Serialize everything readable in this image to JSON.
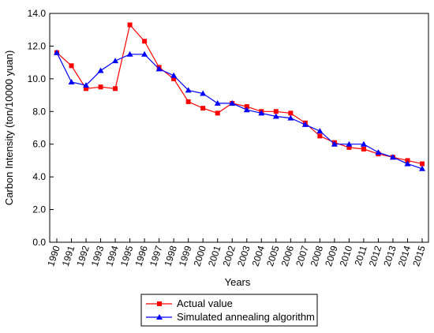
{
  "chart_data": {
    "type": "line",
    "xlabel": "Years",
    "ylabel": "Carbon Intensity (ton/10000 yuan)",
    "x": [
      "1990",
      "1991",
      "1992",
      "1993",
      "1994",
      "1995",
      "1996",
      "1997",
      "1998",
      "1999",
      "2000",
      "2001",
      "2002",
      "2003",
      "2004",
      "2005",
      "2006",
      "2007",
      "2008",
      "2009",
      "2010",
      "2011",
      "2012",
      "2013",
      "2014",
      "2015"
    ],
    "ylim": [
      0,
      14
    ],
    "yticks": [
      "0.0",
      "2.0",
      "4.0",
      "6.0",
      "8.0",
      "10.0",
      "12.0",
      "14.0"
    ],
    "grid": false,
    "legend_position": "bottom",
    "series": [
      {
        "name": "Actual value",
        "color": "#ff0000",
        "marker": "square",
        "values": [
          11.6,
          10.8,
          9.4,
          9.5,
          9.4,
          13.3,
          12.3,
          10.7,
          10.0,
          8.6,
          8.2,
          7.9,
          8.5,
          8.3,
          8.0,
          8.0,
          7.9,
          7.3,
          6.5,
          6.1,
          5.8,
          5.7,
          5.4,
          5.2,
          5.0,
          4.8
        ]
      },
      {
        "name": "Simulated annealing algorithm",
        "color": "#0000ff",
        "marker": "triangle",
        "values": [
          11.6,
          9.8,
          9.6,
          10.5,
          11.1,
          11.5,
          11.5,
          10.6,
          10.2,
          9.3,
          9.1,
          8.5,
          8.5,
          8.1,
          7.9,
          7.7,
          7.6,
          7.2,
          6.8,
          6.0,
          6.0,
          6.0,
          5.5,
          5.2,
          4.8,
          4.5
        ]
      }
    ]
  }
}
